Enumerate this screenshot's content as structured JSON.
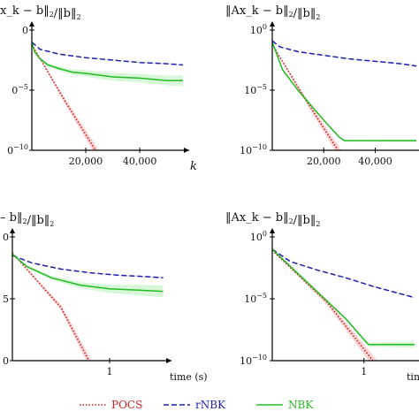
{
  "colors": {
    "POCS": "#cc2222",
    "rNBK": "#1f1faa",
    "NBK": "#22bb22",
    "POCS_band": "#f4b0b0",
    "rNBK_band": "#c9c9ee",
    "NBK_band": "#b8f0b8"
  },
  "legend": {
    "placement": "bottom",
    "entries": [
      {
        "key": "POCS",
        "label": "POCS",
        "style": "dotted"
      },
      {
        "key": "rNBK",
        "label": "rNBK",
        "style": "dashed"
      },
      {
        "key": "NBK",
        "label": "NBK",
        "style": "solid"
      }
    ]
  },
  "chart_data": [
    {
      "type": "line",
      "title": "x_k − b‖_2/‖b‖_2",
      "xlabel": "k",
      "yscale": "log",
      "xlim": [
        0,
        57000
      ],
      "ylim_exp": [
        -10,
        0
      ],
      "xticks": [
        {
          "value": 20000,
          "label": "20,000"
        },
        {
          "value": 40000,
          "label": "40,000"
        }
      ],
      "yticks": [
        {
          "exp": 0,
          "label": "0"
        },
        {
          "exp": -5,
          "label": "0−5"
        },
        {
          "exp": -10,
          "label": "0−10"
        }
      ],
      "series": [
        {
          "key": "POCS",
          "name": "POCS",
          "x": [
            0,
            12000,
            25000
          ],
          "log10_y": [
            -1.2,
            -5.8,
            -10.5
          ],
          "band": 0.45
        },
        {
          "key": "rNBK",
          "name": "rNBK",
          "x": [
            0,
            3000,
            10000,
            20000,
            30000,
            40000,
            50000,
            56000
          ],
          "log10_y": [
            -1.0,
            -1.6,
            -2.0,
            -2.3,
            -2.5,
            -2.7,
            -2.8,
            -2.9
          ],
          "band": 0.05
        },
        {
          "key": "NBK",
          "name": "NBK",
          "x": [
            0,
            1000,
            3000,
            6000,
            10000,
            15000,
            20000,
            30000,
            40000,
            50000,
            56000
          ],
          "log10_y": [
            -1.0,
            -1.8,
            -2.4,
            -2.9,
            -3.2,
            -3.5,
            -3.6,
            -3.9,
            -4.0,
            -4.2,
            -4.2
          ],
          "band": 0.45
        }
      ]
    },
    {
      "type": "line",
      "title": "‖Ax_k − b‖_2/‖b‖_2",
      "xlabel": "",
      "yscale": "log",
      "xlim": [
        0,
        57000
      ],
      "ylim_exp": [
        -10,
        0
      ],
      "xticks": [
        {
          "value": 20000,
          "label": "20,000"
        },
        {
          "value": 40000,
          "label": "40,000"
        }
      ],
      "yticks": [
        {
          "exp": 0,
          "label": "10^0"
        },
        {
          "exp": -5,
          "label": "10^−5"
        },
        {
          "exp": -10,
          "label": "10^−10"
        }
      ],
      "series": [
        {
          "key": "POCS",
          "name": "POCS",
          "x": [
            0,
            13000,
            27000
          ],
          "log10_y": [
            -1.2,
            -5.8,
            -10.5
          ],
          "band": 0.45
        },
        {
          "key": "rNBK",
          "name": "rNBK",
          "x": [
            0,
            3000,
            10000,
            20000,
            30000,
            40000,
            50000,
            56000
          ],
          "log10_y": [
            -0.9,
            -1.4,
            -1.8,
            -2.1,
            -2.4,
            -2.6,
            -2.8,
            -3.0
          ],
          "band": 0.05
        },
        {
          "key": "NBK",
          "name": "NBK",
          "x": [
            0,
            4000,
            10000,
            20000,
            26000,
            28000,
            35000,
            45000,
            56000
          ],
          "log10_y": [
            -1.0,
            -3.3,
            -5.0,
            -7.5,
            -8.9,
            -9.2,
            -9.2,
            -9.2,
            -9.2
          ],
          "band": 0.1
        }
      ]
    },
    {
      "type": "line",
      "title": "– b‖_2/‖b‖_2",
      "xlabel": "time (s)",
      "yscale": "log",
      "xlim_log": [
        -1.0,
        0.6
      ],
      "ylim_exp": [
        -10,
        0
      ],
      "xticks": [
        {
          "log10": 0,
          "label": "1"
        }
      ],
      "yticks": [
        {
          "exp": 0,
          "label": "0"
        },
        {
          "exp": -5,
          "label": "5"
        },
        {
          "exp": -10,
          "label": "0"
        }
      ],
      "series": [
        {
          "key": "POCS",
          "name": "POCS",
          "log10_x": [
            -1.0,
            -0.5,
            -0.18
          ],
          "log10_y": [
            -1.3,
            -5.7,
            -10.5
          ],
          "band": 0.45
        },
        {
          "key": "rNBK",
          "name": "rNBK",
          "log10_x": [
            -1.0,
            -0.8,
            -0.5,
            -0.2,
            0.1,
            0.35,
            0.55
          ],
          "log10_y": [
            -1.5,
            -2.1,
            -2.6,
            -2.9,
            -3.1,
            -3.2,
            -3.3
          ],
          "band": 0.06
        },
        {
          "key": "NBK",
          "name": "NBK",
          "log10_x": [
            -1.0,
            -0.85,
            -0.6,
            -0.3,
            0.0,
            0.3,
            0.55
          ],
          "log10_y": [
            -1.4,
            -2.4,
            -3.3,
            -3.9,
            -4.2,
            -4.3,
            -4.4
          ],
          "band": 0.5
        }
      ]
    },
    {
      "type": "line",
      "title": "‖Ax_k − b‖_2/‖b‖_2",
      "xlabel": "time (s)",
      "yscale": "log",
      "xlim_log": [
        -1.0,
        0.6
      ],
      "ylim_exp": [
        -10,
        0
      ],
      "xticks": [
        {
          "log10": 0,
          "label": "1"
        }
      ],
      "yticks": [
        {
          "exp": 0,
          "label": "10^0"
        },
        {
          "exp": -5,
          "label": "10^−5"
        },
        {
          "exp": -10,
          "label": "10^−10"
        }
      ],
      "series": [
        {
          "key": "POCS",
          "name": "POCS",
          "log10_x": [
            -1.0,
            -0.4,
            0.15
          ],
          "log10_y": [
            -1.1,
            -5.3,
            -10.5
          ],
          "band": 0.45
        },
        {
          "key": "rNBK",
          "name": "rNBK",
          "log10_x": [
            -1.0,
            -0.8,
            -0.5,
            -0.2,
            0.1,
            0.35,
            0.55
          ],
          "log10_y": [
            -1.0,
            -2.0,
            -2.7,
            -3.3,
            -4.0,
            -4.5,
            -4.9
          ],
          "band": 0.06
        },
        {
          "key": "NBK",
          "name": "NBK",
          "log10_x": [
            -1.0,
            -0.6,
            -0.2,
            0.0,
            0.05,
            0.3,
            0.55
          ],
          "log10_y": [
            -1.0,
            -3.8,
            -6.6,
            -8.3,
            -8.7,
            -8.7,
            -8.7
          ],
          "band": 0.25
        }
      ]
    }
  ]
}
